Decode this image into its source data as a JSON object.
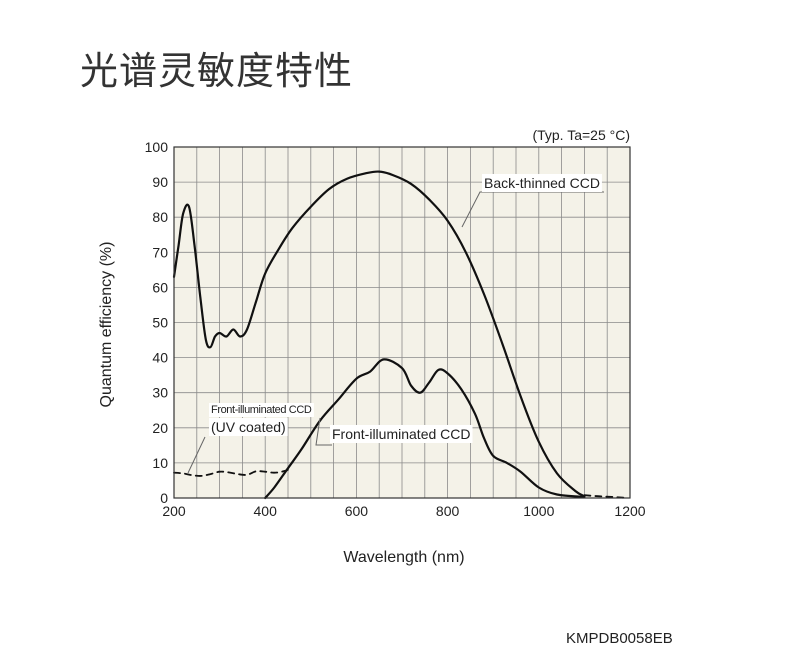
{
  "page": {
    "title": "光谱灵敏度特性",
    "figure_code": "KMPDB0058EB"
  },
  "chart_data": {
    "type": "line",
    "title": "",
    "condition_note": "(Typ. Ta=25 °C)",
    "xlabel": "Wavelength (nm)",
    "ylabel": "Quantum efficiency (%)",
    "xlim": [
      200,
      1200
    ],
    "ylim": [
      0,
      100
    ],
    "xticks": [
      200,
      400,
      600,
      800,
      1000,
      1200
    ],
    "yticks": [
      0,
      10,
      20,
      30,
      40,
      50,
      60,
      70,
      80,
      90,
      100
    ],
    "grid": true,
    "background": "#f4f2e8",
    "line_color": "#111111",
    "series": [
      {
        "name": "Back-thinned CCD",
        "line_style": "solid",
        "points": [
          [
            200,
            63
          ],
          [
            210,
            72
          ],
          [
            220,
            81
          ],
          [
            233,
            83
          ],
          [
            245,
            72
          ],
          [
            258,
            57
          ],
          [
            270,
            45
          ],
          [
            280,
            43
          ],
          [
            290,
            46
          ],
          [
            300,
            47
          ],
          [
            315,
            46
          ],
          [
            330,
            48
          ],
          [
            345,
            46
          ],
          [
            360,
            48
          ],
          [
            380,
            56
          ],
          [
            400,
            64
          ],
          [
            430,
            71
          ],
          [
            460,
            77
          ],
          [
            500,
            83
          ],
          [
            540,
            88
          ],
          [
            580,
            91
          ],
          [
            620,
            92.5
          ],
          [
            650,
            93
          ],
          [
            680,
            92
          ],
          [
            720,
            89.5
          ],
          [
            760,
            85
          ],
          [
            800,
            79
          ],
          [
            840,
            70
          ],
          [
            880,
            58
          ],
          [
            920,
            44
          ],
          [
            960,
            29
          ],
          [
            1000,
            16
          ],
          [
            1040,
            7
          ],
          [
            1080,
            2
          ],
          [
            1100,
            0.5
          ]
        ]
      },
      {
        "name": "Front-illuminated CCD",
        "line_style": "solid",
        "points": [
          [
            400,
            0
          ],
          [
            420,
            3
          ],
          [
            450,
            8.5
          ],
          [
            480,
            14
          ],
          [
            520,
            22
          ],
          [
            560,
            28
          ],
          [
            600,
            34
          ],
          [
            630,
            36
          ],
          [
            660,
            39.5
          ],
          [
            700,
            37
          ],
          [
            720,
            32
          ],
          [
            740,
            30
          ],
          [
            760,
            33
          ],
          [
            780,
            36.5
          ],
          [
            800,
            35.5
          ],
          [
            830,
            31
          ],
          [
            860,
            24
          ],
          [
            880,
            17
          ],
          [
            900,
            12
          ],
          [
            930,
            10
          ],
          [
            960,
            7.5
          ],
          [
            1000,
            3
          ],
          [
            1040,
            1
          ],
          [
            1100,
            0.3
          ]
        ]
      },
      {
        "name": "Front-illuminated CCD (UV coated)",
        "line_style": "dashed",
        "points": [
          [
            200,
            7.2
          ],
          [
            220,
            7.0
          ],
          [
            240,
            6.5
          ],
          [
            260,
            6.3
          ],
          [
            280,
            6.8
          ],
          [
            300,
            7.5
          ],
          [
            320,
            7.3
          ],
          [
            340,
            6.8
          ],
          [
            360,
            6.6
          ],
          [
            380,
            7.6
          ],
          [
            400,
            7.5
          ],
          [
            420,
            7.2
          ],
          [
            440,
            7.6
          ],
          [
            455,
            8.3
          ]
        ]
      },
      {
        "name": "Back-thinned CCD tail",
        "line_style": "dashed",
        "points": [
          [
            1100,
            0.8
          ],
          [
            1130,
            0.5
          ],
          [
            1160,
            0.3
          ],
          [
            1190,
            0.05
          ]
        ]
      }
    ],
    "annotations": [
      {
        "text": "Back-thinned CCD",
        "x": 860,
        "y": 89
      },
      {
        "text": "Front-illuminated CCD",
        "x": 720,
        "y": 17
      },
      {
        "text": "Front-illuminated CCD",
        "x": 290,
        "y": 25
      },
      {
        "text": "(UV coated)",
        "x": 290,
        "y": 20
      }
    ]
  }
}
